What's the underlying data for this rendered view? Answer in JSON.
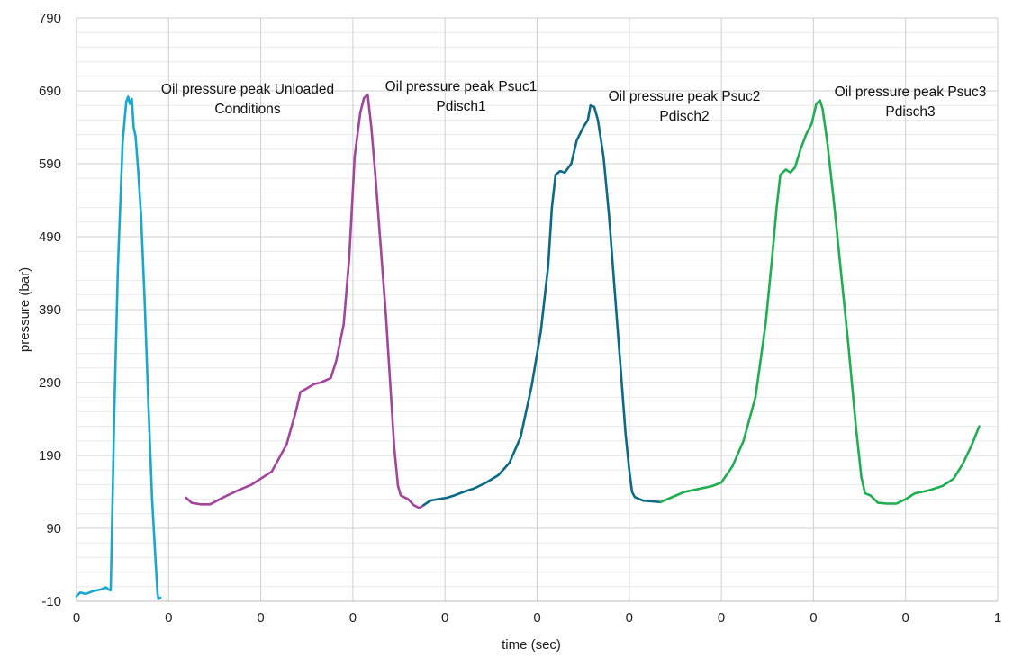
{
  "chart_data": {
    "type": "line",
    "title": "",
    "xlabel": "time (sec)",
    "ylabel": "pressure (bar)",
    "xlim": [
      0,
      1
    ],
    "ylim": [
      -10,
      790
    ],
    "grid": true,
    "x_tick_labels": [
      "0",
      "0",
      "0",
      "0",
      "0",
      "0",
      "0",
      "0",
      "0",
      "0",
      "1"
    ],
    "y_tick_labels": [
      "-10",
      "90",
      "190",
      "290",
      "390",
      "490",
      "590",
      "690",
      "790"
    ],
    "annotations": [
      {
        "lines": [
          "Oil pressure peak Unloaded",
          "Conditions"
        ]
      },
      {
        "lines": [
          "Oil pressure peak Psuc1",
          "Pdisch1"
        ]
      },
      {
        "lines": [
          "Oil pressure peak Psuc2",
          "Pdisch2"
        ]
      },
      {
        "lines": [
          "Oil pressure peak Psuc3",
          "Pdisch3"
        ]
      }
    ],
    "series": [
      {
        "color": "#1aa7cf",
        "points": [
          [
            0.0,
            -3
          ],
          [
            0.004,
            2
          ],
          [
            0.01,
            0
          ],
          [
            0.018,
            4
          ],
          [
            0.026,
            6
          ],
          [
            0.032,
            9
          ],
          [
            0.035,
            6
          ],
          [
            0.037,
            5
          ],
          [
            0.038,
            60
          ],
          [
            0.041,
            250
          ],
          [
            0.045,
            450
          ],
          [
            0.05,
            620
          ],
          [
            0.054,
            675
          ],
          [
            0.056,
            682
          ],
          [
            0.058,
            672
          ],
          [
            0.06,
            679
          ],
          [
            0.062,
            640
          ],
          [
            0.064,
            628
          ],
          [
            0.067,
            580
          ],
          [
            0.07,
            520
          ],
          [
            0.074,
            400
          ],
          [
            0.078,
            260
          ],
          [
            0.082,
            130
          ],
          [
            0.086,
            40
          ],
          [
            0.088,
            0
          ],
          [
            0.089,
            -7
          ],
          [
            0.091,
            -5
          ]
        ]
      },
      {
        "color": "#a3459a",
        "points": [
          [
            0.119,
            132
          ],
          [
            0.125,
            125
          ],
          [
            0.135,
            123
          ],
          [
            0.145,
            123
          ],
          [
            0.16,
            133
          ],
          [
            0.175,
            142
          ],
          [
            0.19,
            150
          ],
          [
            0.212,
            168
          ],
          [
            0.228,
            205
          ],
          [
            0.238,
            250
          ],
          [
            0.243,
            277
          ],
          [
            0.25,
            282
          ],
          [
            0.258,
            288
          ],
          [
            0.265,
            290
          ],
          [
            0.276,
            296
          ],
          [
            0.282,
            320
          ],
          [
            0.29,
            370
          ],
          [
            0.296,
            460
          ],
          [
            0.302,
            600
          ],
          [
            0.308,
            660
          ],
          [
            0.312,
            680
          ],
          [
            0.316,
            685
          ],
          [
            0.32,
            640
          ],
          [
            0.324,
            580
          ],
          [
            0.33,
            480
          ],
          [
            0.336,
            380
          ],
          [
            0.34,
            300
          ],
          [
            0.345,
            200
          ],
          [
            0.349,
            148
          ],
          [
            0.352,
            135
          ],
          [
            0.36,
            130
          ],
          [
            0.366,
            122
          ],
          [
            0.372,
            118
          ],
          [
            0.377,
            122
          ]
        ]
      },
      {
        "color": "#0b6b86",
        "points": [
          [
            0.377,
            122
          ],
          [
            0.384,
            128
          ],
          [
            0.392,
            130
          ],
          [
            0.402,
            132
          ],
          [
            0.41,
            135
          ],
          [
            0.42,
            140
          ],
          [
            0.432,
            145
          ],
          [
            0.445,
            153
          ],
          [
            0.458,
            163
          ],
          [
            0.47,
            180
          ],
          [
            0.482,
            215
          ],
          [
            0.494,
            285
          ],
          [
            0.504,
            360
          ],
          [
            0.512,
            450
          ],
          [
            0.516,
            530
          ],
          [
            0.52,
            575
          ],
          [
            0.525,
            580
          ],
          [
            0.53,
            578
          ],
          [
            0.537,
            590
          ],
          [
            0.543,
            622
          ],
          [
            0.55,
            640
          ],
          [
            0.555,
            650
          ],
          [
            0.558,
            670
          ],
          [
            0.562,
            668
          ],
          [
            0.566,
            650
          ],
          [
            0.572,
            600
          ],
          [
            0.578,
            520
          ],
          [
            0.584,
            420
          ],
          [
            0.59,
            320
          ],
          [
            0.596,
            220
          ],
          [
            0.6,
            170
          ],
          [
            0.603,
            140
          ],
          [
            0.606,
            133
          ],
          [
            0.615,
            128
          ],
          [
            0.625,
            127
          ],
          [
            0.634,
            126
          ]
        ]
      },
      {
        "color": "#1faf50",
        "points": [
          [
            0.634,
            126
          ],
          [
            0.645,
            132
          ],
          [
            0.66,
            140
          ],
          [
            0.675,
            144
          ],
          [
            0.69,
            148
          ],
          [
            0.7,
            153
          ],
          [
            0.712,
            175
          ],
          [
            0.724,
            210
          ],
          [
            0.737,
            270
          ],
          [
            0.748,
            370
          ],
          [
            0.755,
            460
          ],
          [
            0.76,
            530
          ],
          [
            0.764,
            575
          ],
          [
            0.77,
            582
          ],
          [
            0.775,
            578
          ],
          [
            0.78,
            585
          ],
          [
            0.786,
            610
          ],
          [
            0.792,
            630
          ],
          [
            0.798,
            645
          ],
          [
            0.803,
            672
          ],
          [
            0.807,
            677
          ],
          [
            0.81,
            665
          ],
          [
            0.815,
            620
          ],
          [
            0.822,
            540
          ],
          [
            0.83,
            440
          ],
          [
            0.838,
            340
          ],
          [
            0.846,
            230
          ],
          [
            0.852,
            160
          ],
          [
            0.856,
            138
          ],
          [
            0.862,
            135
          ],
          [
            0.87,
            125
          ],
          [
            0.88,
            124
          ],
          [
            0.89,
            124
          ],
          [
            0.9,
            130
          ],
          [
            0.91,
            138
          ],
          [
            0.925,
            142
          ],
          [
            0.94,
            148
          ],
          [
            0.952,
            158
          ],
          [
            0.962,
            178
          ],
          [
            0.972,
            205
          ],
          [
            0.98,
            230
          ]
        ]
      }
    ]
  }
}
